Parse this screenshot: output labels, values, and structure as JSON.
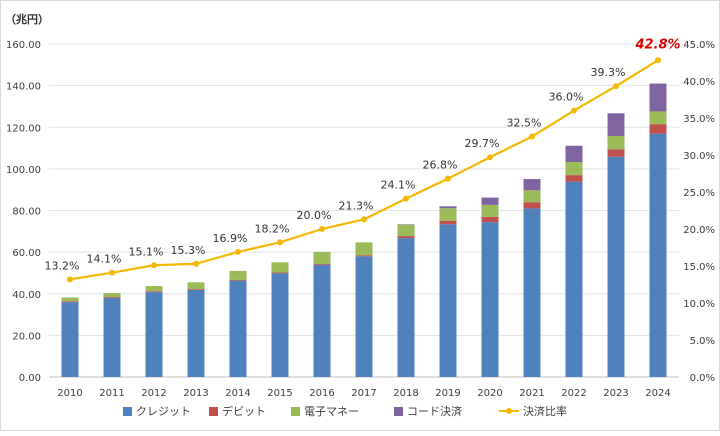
{
  "chart_data": {
    "type": "bar",
    "stacked": true,
    "y_unit_label": "（兆円）",
    "categories": [
      "2010",
      "2011",
      "2012",
      "2013",
      "2014",
      "2015",
      "2016",
      "2017",
      "2018",
      "2019",
      "2020",
      "2021",
      "2022",
      "2023",
      "2024"
    ],
    "ylim": [
      0,
      160
    ],
    "yticks": [
      "0.00",
      "20.00",
      "40.00",
      "60.00",
      "80.00",
      "100.00",
      "120.00",
      "140.00",
      "160.00"
    ],
    "y2lim": [
      0,
      45
    ],
    "y2ticks": [
      "0.0%",
      "5.0%",
      "10.0%",
      "15.0%",
      "20.0%",
      "25.0%",
      "30.0%",
      "35.0%",
      "40.0%",
      "45.0%"
    ],
    "grid": true,
    "legend_position": "bottom",
    "series": [
      {
        "name": "クレジット",
        "color": "#4f81bd",
        "values": [
          36.0,
          38.0,
          40.8,
          41.8,
          46.3,
          49.8,
          53.9,
          58.0,
          66.7,
          73.4,
          74.4,
          81.0,
          93.8,
          105.8,
          116.9
        ]
      },
      {
        "name": "デビット",
        "color": "#c0504d",
        "values": [
          0.4,
          0.4,
          0.4,
          0.4,
          0.4,
          0.4,
          0.4,
          0.5,
          1.0,
          1.7,
          2.5,
          3.0,
          3.2,
          3.6,
          4.6
        ]
      },
      {
        "name": "電子マネー",
        "color": "#9bbb59",
        "values": [
          1.8,
          1.9,
          2.5,
          3.3,
          4.3,
          4.9,
          5.8,
          6.2,
          5.5,
          6.0,
          5.8,
          5.7,
          6.3,
          6.4,
          6.1
        ]
      },
      {
        "name": "コード決済",
        "color": "#8064a2",
        "values": [
          0,
          0,
          0,
          0,
          0,
          0,
          0,
          0,
          0.2,
          0.9,
          3.5,
          5.4,
          7.8,
          10.9,
          13.4
        ]
      }
    ],
    "line": {
      "name": "決済比率",
      "color": "#f5b800",
      "axis": "right",
      "values": [
        13.2,
        14.1,
        15.1,
        15.3,
        16.9,
        18.2,
        20.0,
        21.3,
        24.1,
        26.8,
        29.7,
        32.5,
        36.0,
        39.3,
        42.8
      ],
      "labels": [
        "13.2%",
        "14.1%",
        "15.1%",
        "15.3%",
        "16.9%",
        "18.2%",
        "20.0%",
        "21.3%",
        "24.1%",
        "26.8%",
        "29.7%",
        "32.5%",
        "36.0%",
        "39.3%",
        "42.8%"
      ],
      "highlight_color": "#e00000"
    }
  }
}
